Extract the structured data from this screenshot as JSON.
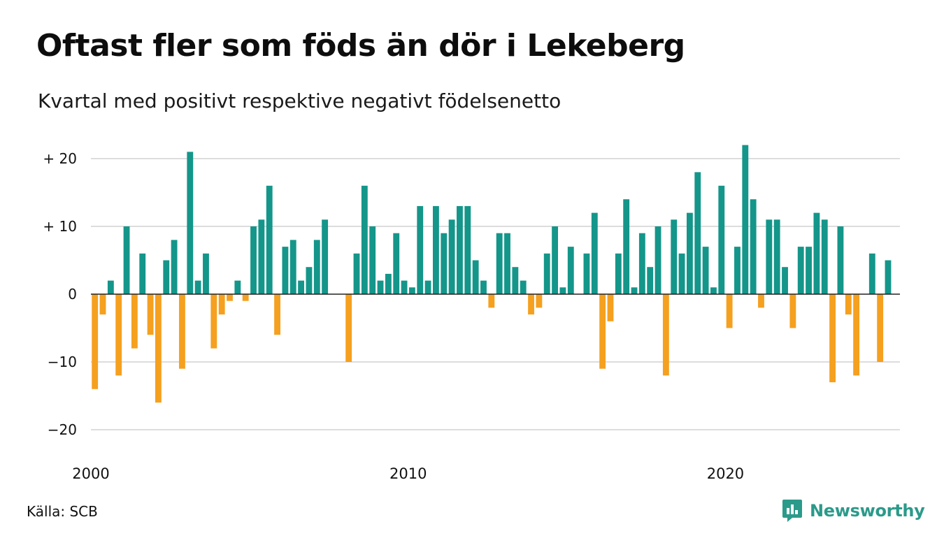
{
  "header": {
    "title": "Oftast fler som föds än dör i Lekeberg",
    "subtitle": "Kvartal med positivt respektive negativt födelsenetto"
  },
  "footer": {
    "source": "Källa: SCB",
    "brand": "Newsworthy",
    "brand_icon": "newsworthy-logo-icon"
  },
  "colors": {
    "positive": "#14968a",
    "negative": "#f5a01f",
    "grid": "#dddddd",
    "brand": "#2b9a8a"
  },
  "chart_data": {
    "type": "bar",
    "title": "Oftast fler som föds än dör i Lekeberg",
    "subtitle": "Kvartal med positivt respektive negativt födelsenetto",
    "xlabel": "",
    "ylabel": "",
    "ylim": [
      -22,
      23
    ],
    "yticks": [
      {
        "value": 20,
        "label": "+ 20"
      },
      {
        "value": 10,
        "label": "+ 10"
      },
      {
        "value": 0,
        "label": "0"
      },
      {
        "value": -10,
        "label": "−10"
      },
      {
        "value": -20,
        "label": "−20"
      }
    ],
    "xticks": [
      {
        "year": 2000,
        "label": "2000"
      },
      {
        "year": 2010,
        "label": "2010"
      },
      {
        "year": 2020,
        "label": "2020"
      }
    ],
    "grid": true,
    "legend": "none",
    "start": "2000 Q1",
    "end": "2025 Q2",
    "categories": [
      "2000 Q1",
      "2000 Q2",
      "2000 Q3",
      "2000 Q4",
      "2001 Q1",
      "2001 Q2",
      "2001 Q3",
      "2001 Q4",
      "2002 Q1",
      "2002 Q2",
      "2002 Q3",
      "2002 Q4",
      "2003 Q1",
      "2003 Q2",
      "2003 Q3",
      "2003 Q4",
      "2004 Q1",
      "2004 Q2",
      "2004 Q3",
      "2004 Q4",
      "2005 Q1",
      "2005 Q2",
      "2005 Q3",
      "2005 Q4",
      "2006 Q1",
      "2006 Q2",
      "2006 Q3",
      "2006 Q4",
      "2007 Q1",
      "2007 Q2",
      "2007 Q3",
      "2007 Q4",
      "2008 Q1",
      "2008 Q2",
      "2008 Q3",
      "2008 Q4",
      "2009 Q1",
      "2009 Q2",
      "2009 Q3",
      "2009 Q4",
      "2010 Q1",
      "2010 Q2",
      "2010 Q3",
      "2010 Q4",
      "2011 Q1",
      "2011 Q2",
      "2011 Q3",
      "2011 Q4",
      "2012 Q1",
      "2012 Q2",
      "2012 Q3",
      "2012 Q4",
      "2013 Q1",
      "2013 Q2",
      "2013 Q3",
      "2013 Q4",
      "2014 Q1",
      "2014 Q2",
      "2014 Q3",
      "2014 Q4",
      "2015 Q1",
      "2015 Q2",
      "2015 Q3",
      "2015 Q4",
      "2016 Q1",
      "2016 Q2",
      "2016 Q3",
      "2016 Q4",
      "2017 Q1",
      "2017 Q2",
      "2017 Q3",
      "2017 Q4",
      "2018 Q1",
      "2018 Q2",
      "2018 Q3",
      "2018 Q4",
      "2019 Q1",
      "2019 Q2",
      "2019 Q3",
      "2019 Q4",
      "2020 Q1",
      "2020 Q2",
      "2020 Q3",
      "2020 Q4",
      "2021 Q1",
      "2021 Q2",
      "2021 Q3",
      "2021 Q4",
      "2022 Q1",
      "2022 Q2",
      "2022 Q3",
      "2022 Q4",
      "2023 Q1",
      "2023 Q2",
      "2023 Q3",
      "2023 Q4",
      "2024 Q1",
      "2024 Q2",
      "2024 Q3",
      "2024 Q4",
      "2025 Q1",
      "2025 Q2"
    ],
    "values": [
      -14,
      -3,
      2,
      -12,
      10,
      -8,
      6,
      -6,
      -16,
      5,
      8,
      -11,
      21,
      2,
      6,
      -8,
      -3,
      -1,
      2,
      -1,
      10,
      11,
      16,
      -6,
      7,
      8,
      2,
      4,
      8,
      11,
      0,
      0,
      -10,
      6,
      16,
      10,
      2,
      3,
      9,
      2,
      1,
      13,
      2,
      13,
      9,
      11,
      13,
      13,
      5,
      2,
      -2,
      9,
      9,
      4,
      2,
      -3,
      -2,
      6,
      10,
      1,
      7,
      0,
      6,
      12,
      -11,
      -4,
      6,
      14,
      1,
      9,
      4,
      10,
      -12,
      11,
      6,
      12,
      18,
      7,
      1,
      16,
      -5,
      7,
      22,
      14,
      -2,
      11,
      11,
      4,
      -5,
      7,
      7,
      12,
      11,
      -13,
      10,
      -3,
      -12,
      0,
      6,
      -10,
      5,
      0
    ]
  }
}
